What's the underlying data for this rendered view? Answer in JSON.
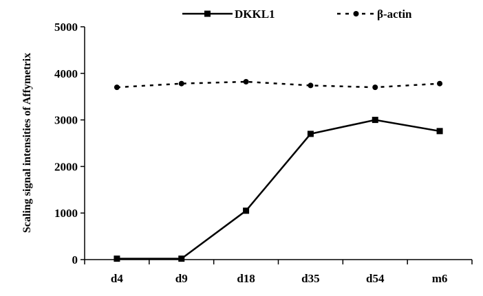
{
  "chart_data": {
    "type": "line",
    "categories": [
      "d4",
      "d9",
      "d18",
      "d35",
      "d54",
      "m6"
    ],
    "series": [
      {
        "name": "DKKL1",
        "values": [
          20,
          20,
          1050,
          2700,
          3000,
          2760
        ],
        "style": "solid",
        "marker": "square",
        "color": "#000000"
      },
      {
        "name": "β-actin",
        "values": [
          3700,
          3780,
          3820,
          3740,
          3700,
          3780
        ],
        "style": "dotted",
        "marker": "circle",
        "color": "#000000"
      }
    ],
    "ylabel": "Scaling signal intensities of Affymetrix",
    "ylim": [
      0,
      5000
    ],
    "yticks": [
      0,
      1000,
      2000,
      3000,
      4000,
      5000
    ],
    "grid": false,
    "legend_position": "top"
  }
}
